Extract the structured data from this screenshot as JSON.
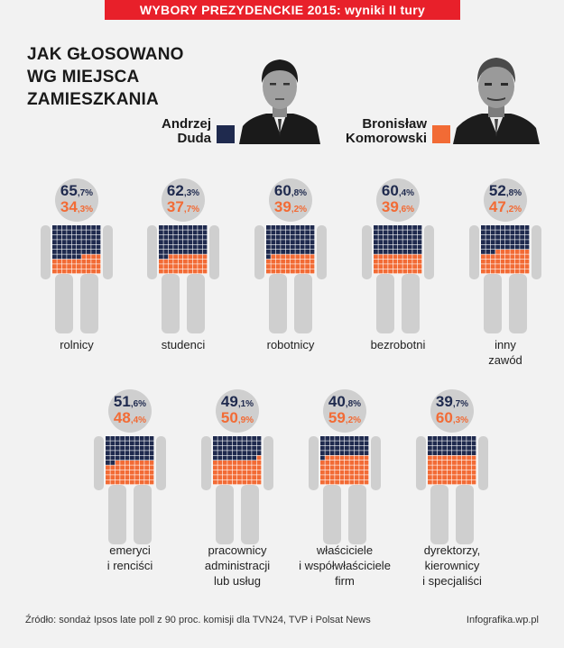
{
  "banner": "WYBORY PREZYDENCKIE 2015: wyniki II tury",
  "title_lines": [
    "JAK GŁOSOWANO",
    "WG MIEJSCA",
    "ZAMIESZKANIA"
  ],
  "colors": {
    "duda": "#1f2a4e",
    "komorowski": "#f26b35",
    "body": "#cfcfcf",
    "background": "#f2f2f2"
  },
  "candidates": {
    "duda": {
      "first": "Andrzej",
      "last": "Duda"
    },
    "komorowski": {
      "first": "Bronisław",
      "last": "Komorowski"
    }
  },
  "chart_data": {
    "type": "pictogram",
    "title": "JAK GŁOSOWANO WG MIEJSCA ZAMIESZKANIA",
    "series": [
      {
        "name": "Andrzej Duda",
        "color": "#1f2a4e",
        "values": [
          65.7,
          62.3,
          60.8,
          60.4,
          52.8,
          51.6,
          49.1,
          40.8,
          39.7
        ]
      },
      {
        "name": "Bronisław Komorowski",
        "color": "#f26b35",
        "values": [
          34.3,
          37.7,
          39.2,
          39.6,
          47.2,
          48.4,
          50.9,
          59.2,
          60.3
        ]
      }
    ],
    "groups": [
      {
        "label_lines": [
          "rolnicy"
        ],
        "duda": {
          "int": "65",
          "dec": ",7%"
        },
        "komorowski": {
          "int": "34",
          "dec": ",3%"
        },
        "duda_value": 65.7
      },
      {
        "label_lines": [
          "studenci"
        ],
        "duda": {
          "int": "62",
          "dec": ",3%"
        },
        "komorowski": {
          "int": "37",
          "dec": ",7%"
        },
        "duda_value": 62.3
      },
      {
        "label_lines": [
          "robotnicy"
        ],
        "duda": {
          "int": "60",
          "dec": ",8%"
        },
        "komorowski": {
          "int": "39",
          "dec": ",2%"
        },
        "duda_value": 60.8
      },
      {
        "label_lines": [
          "bezrobotni"
        ],
        "duda": {
          "int": "60",
          "dec": ",4%"
        },
        "komorowski": {
          "int": "39",
          "dec": ",6%"
        },
        "duda_value": 60.4
      },
      {
        "label_lines": [
          "inny",
          "zawód"
        ],
        "duda": {
          "int": "52",
          "dec": ",8%"
        },
        "komorowski": {
          "int": "47",
          "dec": ",2%"
        },
        "duda_value": 52.8
      },
      {
        "label_lines": [
          "emeryci",
          "i renciści"
        ],
        "duda": {
          "int": "51",
          "dec": ",6%"
        },
        "komorowski": {
          "int": "48",
          "dec": ",4%"
        },
        "duda_value": 51.6
      },
      {
        "label_lines": [
          "pracownicy",
          "administracji",
          "lub usług"
        ],
        "duda": {
          "int": "49",
          "dec": ",1%"
        },
        "komorowski": {
          "int": "50",
          "dec": ",9%"
        },
        "duda_value": 49.1
      },
      {
        "label_lines": [
          "właściciele",
          "i współwłaściciele",
          "firm"
        ],
        "duda": {
          "int": "40",
          "dec": ",8%"
        },
        "komorowski": {
          "int": "59",
          "dec": ",2%"
        },
        "duda_value": 40.8
      },
      {
        "label_lines": [
          "dyrektorzy,",
          "kierownicy",
          "i specjaliści"
        ],
        "duda": {
          "int": "39",
          "dec": ",7%"
        },
        "komorowski": {
          "int": "60",
          "dec": ",3%"
        },
        "duda_value": 39.7
      }
    ]
  },
  "footer": {
    "source": "Źródło: sondaż Ipsos late poll z 90 proc. komisji dla TVN24, TVP i Polsat News",
    "credit": "Infografika.wp.pl"
  }
}
